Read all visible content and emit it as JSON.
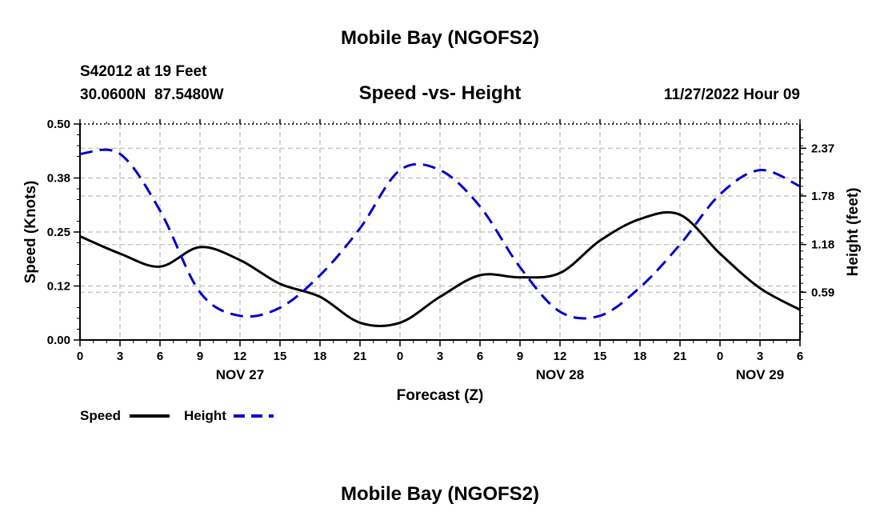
{
  "header": {
    "title_top": "Mobile Bay (NGOFS2)",
    "station_line": "S42012 at 19 Feet",
    "coords_line": "30.0600N  87.5480W",
    "chart_title": "Speed -vs- Height",
    "datetime": "11/27/2022 Hour 09",
    "title_bottom": "Mobile Bay (NGOFS2)"
  },
  "chart_data": {
    "type": "line",
    "title": "Speed -vs- Height",
    "xlabel": "Forecast (Z)",
    "ylabel_left": "Speed (Knots)",
    "ylabel_right": "Height (feet)",
    "x_hours_range": [
      0,
      54
    ],
    "x_tick_labels": [
      "0",
      "3",
      "6",
      "9",
      "12",
      "15",
      "18",
      "21",
      "0",
      "3",
      "6",
      "9",
      "12",
      "15",
      "18",
      "21",
      "0",
      "3",
      "6"
    ],
    "date_labels": [
      {
        "label": "NOV 27",
        "hour": 12
      },
      {
        "label": "NOV 28",
        "hour": 36
      },
      {
        "label": "NOV 29",
        "hour": 51
      }
    ],
    "ylim_left": [
      0,
      0.5
    ],
    "y_ticks_left": [
      0.0,
      0.125,
      0.25,
      0.375,
      0.5
    ],
    "y_tick_labels_left": [
      "0.00",
      "0.12",
      "0.25",
      "0.38",
      "0.50"
    ],
    "ylim_right": [
      0,
      2.67
    ],
    "y_ticks_right": [
      0.59,
      1.18,
      1.78,
      2.37
    ],
    "y_tick_labels_right": [
      "0.59",
      "1.18",
      "1.78",
      "2.37"
    ],
    "grid": true,
    "series": [
      {
        "name": "Speed",
        "axis": "left",
        "color": "#000000",
        "dash": "solid",
        "x": [
          0,
          3,
          6,
          9,
          12,
          15,
          18,
          21,
          24,
          27,
          30,
          33,
          36,
          39,
          42,
          45,
          48,
          51,
          54
        ],
        "values": [
          0.24,
          0.2,
          0.17,
          0.215,
          0.185,
          0.13,
          0.1,
          0.04,
          0.04,
          0.1,
          0.15,
          0.145,
          0.155,
          0.23,
          0.28,
          0.29,
          0.2,
          0.12,
          0.07
        ]
      },
      {
        "name": "Height",
        "axis": "right",
        "color": "#0000cc",
        "dash": "dashed",
        "x": [
          0,
          3,
          6,
          9,
          12,
          15,
          18,
          21,
          24,
          27,
          30,
          33,
          36,
          39,
          42,
          45,
          48,
          51,
          54
        ],
        "values": [
          2.3,
          2.3,
          1.6,
          0.59,
          0.3,
          0.4,
          0.8,
          1.38,
          2.1,
          2.1,
          1.65,
          0.9,
          0.35,
          0.3,
          0.65,
          1.18,
          1.8,
          2.1,
          1.9
        ]
      }
    ],
    "legend": [
      {
        "label": "Speed",
        "color": "#000000",
        "dash": "solid"
      },
      {
        "label": "Height",
        "color": "#0000cc",
        "dash": "dashed"
      }
    ]
  }
}
